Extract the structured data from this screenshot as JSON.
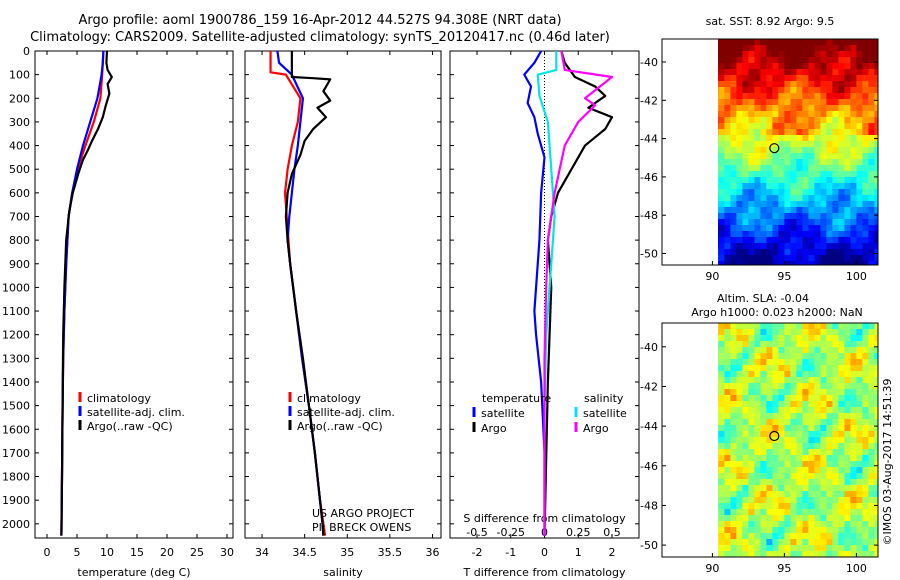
{
  "header": {
    "title_line1": "Argo profile: aoml 1900786_159 16-Apr-2012 44.527S 94.308E (NRT data)",
    "title_line2": "Climatology: CARS2009. Satellite-adjusted climatology: synTS_20120417.nc (0.46d later)"
  },
  "colors": {
    "climatology": "#ff0000",
    "satellite": "#0000ff",
    "argo": "#000000",
    "satellite_salinity": "#00e5e5",
    "argo_salinity": "#ff00ff"
  },
  "chart_data": [
    {
      "type": "line",
      "panel": "temperature",
      "xlabel": "temperature (deg C)",
      "ylabel": "",
      "xlim": [
        -2,
        31
      ],
      "ylim": [
        2060,
        0
      ],
      "xticks": [
        0,
        5,
        10,
        15,
        20,
        25,
        30
      ],
      "yticks": [
        0,
        100,
        200,
        300,
        400,
        500,
        600,
        700,
        800,
        900,
        1000,
        1100,
        1200,
        1300,
        1400,
        1500,
        1600,
        1700,
        1800,
        1900,
        2000
      ],
      "legend": [
        "climatology",
        "satellite-adj. clim.",
        "Argo(..raw -QC)"
      ],
      "legend_position": "lower-left",
      "series": [
        {
          "name": "climatology",
          "color": "#ff0000",
          "x": [
            9.4,
            9.3,
            9.2,
            8.9,
            7.8,
            6.4,
            5.1,
            4.2,
            3.6,
            3.2,
            2.9,
            2.7,
            2.6,
            2.5,
            2.4
          ],
          "y": [
            0,
            50,
            100,
            200,
            300,
            400,
            500,
            600,
            700,
            900,
            1100,
            1300,
            1500,
            1800,
            2050
          ]
        },
        {
          "name": "satellite-adj. clim.",
          "color": "#0000ff",
          "x": [
            9.4,
            9.3,
            9.1,
            8.4,
            7.2,
            6.0,
            5.0,
            4.2,
            3.6,
            3.2,
            2.9,
            2.7,
            2.6,
            2.5,
            2.4
          ],
          "y": [
            0,
            50,
            100,
            200,
            300,
            400,
            500,
            600,
            700,
            900,
            1100,
            1300,
            1500,
            1800,
            2050
          ]
        },
        {
          "name": "Argo(..raw -QC)",
          "color": "#000000",
          "x": [
            10.0,
            9.9,
            10.1,
            10.8,
            10.1,
            10.4,
            9.8,
            9.3,
            8.5,
            7.5,
            6.8,
            6.0,
            5.2,
            4.3,
            3.7,
            3.2,
            2.9,
            2.7,
            2.6,
            2.5,
            2.4
          ],
          "y": [
            0,
            50,
            80,
            110,
            140,
            180,
            230,
            280,
            330,
            380,
            420,
            460,
            520,
            600,
            680,
            800,
            1000,
            1200,
            1500,
            1800,
            2050
          ]
        }
      ]
    },
    {
      "type": "line",
      "panel": "salinity",
      "xlabel": "salinity",
      "ylabel": "",
      "xlim": [
        33.8,
        36.1
      ],
      "ylim": [
        2060,
        0
      ],
      "xticks": [
        34,
        34.5,
        35,
        35.5,
        36
      ],
      "legend": [
        "climatology",
        "satellite-adj. clim.",
        "Argo(..raw -QC)"
      ],
      "legend_position": "lower-left",
      "annotations": [
        "US ARGO PROJECT",
        "PI: BRECK OWENS"
      ],
      "series": [
        {
          "name": "climatology",
          "color": "#ff0000",
          "x": [
            34.1,
            34.1,
            34.28,
            34.45,
            34.42,
            34.35,
            34.3,
            34.27,
            34.29,
            34.33,
            34.4,
            34.47,
            34.55,
            34.62,
            34.68,
            34.72,
            34.74
          ],
          "y": [
            0,
            90,
            100,
            200,
            300,
            400,
            500,
            600,
            700,
            900,
            1100,
            1300,
            1500,
            1700,
            1900,
            2000,
            2050
          ]
        },
        {
          "name": "satellite-adj. clim.",
          "color": "#0000ff",
          "x": [
            34.18,
            34.2,
            34.35,
            34.48,
            34.45,
            34.42,
            34.38,
            34.35,
            34.32,
            34.3,
            34.33,
            34.4,
            34.47,
            34.55,
            34.62,
            34.68,
            34.71,
            34.72
          ],
          "y": [
            0,
            50,
            100,
            200,
            300,
            400,
            500,
            600,
            700,
            800,
            900,
            1100,
            1300,
            1500,
            1700,
            1900,
            2000,
            2050
          ]
        },
        {
          "name": "Argo(..raw -QC)",
          "color": "#000000",
          "x": [
            34.35,
            34.35,
            34.6,
            34.8,
            34.72,
            34.8,
            34.65,
            34.75,
            34.6,
            34.5,
            34.45,
            34.35,
            34.3,
            34.28,
            34.3,
            34.33,
            34.4,
            34.48,
            34.55,
            34.62,
            34.68,
            34.71,
            34.72
          ],
          "y": [
            0,
            110,
            115,
            120,
            170,
            210,
            240,
            280,
            330,
            380,
            440,
            520,
            600,
            700,
            800,
            900,
            1100,
            1300,
            1500,
            1700,
            1900,
            2000,
            2050
          ]
        }
      ]
    },
    {
      "type": "line",
      "panel": "differences",
      "xlabel": "T difference from climatology",
      "xlabel_top": "S difference from climatology",
      "xlim": [
        -2.8,
        2.8
      ],
      "ylim": [
        2060,
        0
      ],
      "xticks": [
        -2,
        -1,
        0,
        1,
        2
      ],
      "xtick_labels_T": [
        "-2",
        "-1",
        "0",
        "1",
        "2"
      ],
      "xticks_S": [
        -0.5,
        -0.25,
        0,
        0.25,
        0.5
      ],
      "xtick_labels_S": [
        "-0.5",
        "-0.25",
        "0",
        "0.25",
        "0.5"
      ],
      "legend": [
        "temperature",
        "satellite",
        "Argo",
        "salinity",
        "satellite",
        "Argo"
      ],
      "legend_position": "lower",
      "series": [
        {
          "name": "satellite",
          "group": "temperature",
          "color": "#0000ff",
          "x": [
            -0.1,
            -0.3,
            -0.6,
            -0.4,
            -0.5,
            -0.3,
            -0.2,
            0.0,
            -0.1,
            -0.15,
            -0.2,
            -0.3,
            -0.25,
            -0.1,
            0.0,
            0.0
          ],
          "y": [
            0,
            50,
            100,
            150,
            220,
            280,
            350,
            450,
            600,
            800,
            900,
            1100,
            1200,
            1400,
            1700,
            2050
          ]
        },
        {
          "name": "Argo",
          "group": "temperature",
          "color": "#000000",
          "x": [
            0.5,
            0.6,
            0.9,
            1.5,
            1.8,
            1.3,
            2.0,
            1.8,
            1.2,
            0.8,
            0.4,
            0.2,
            0.1,
            0.2,
            0.1,
            0.0
          ],
          "y": [
            0,
            50,
            110,
            150,
            190,
            240,
            280,
            330,
            400,
            500,
            600,
            700,
            800,
            1000,
            1400,
            2050
          ]
        },
        {
          "name": "satellite",
          "group": "salinity",
          "color": "#00e5e5",
          "x": [
            0.35,
            0.35,
            -0.2,
            -0.15,
            0.1,
            0.15,
            0.2,
            0.3,
            0.2,
            0.05,
            0.0,
            0.0
          ],
          "y": [
            0,
            80,
            100,
            190,
            300,
            400,
            500,
            700,
            900,
            1200,
            1500,
            2050
          ]
        },
        {
          "name": "Argo",
          "group": "salinity",
          "color": "#ff00ff",
          "x": [
            0.5,
            0.6,
            2.0,
            1.2,
            1.5,
            1.0,
            0.6,
            0.3,
            0.1,
            0.05,
            0.0,
            0.0
          ],
          "y": [
            0,
            80,
            110,
            200,
            230,
            300,
            400,
            600,
            800,
            1000,
            1300,
            2050
          ]
        }
      ]
    },
    {
      "type": "heatmap",
      "panel": "sst-map",
      "title": "sat. SST: 8.92 Argo: 9.5",
      "xticks": [
        90,
        95,
        100
      ],
      "yticks": [
        -40,
        -42,
        -44,
        -46,
        -48,
        -50
      ],
      "xlim": [
        86.5,
        101.5
      ],
      "ylim": [
        -50.6,
        -38.8
      ],
      "data_xlim": [
        90,
        101.5
      ],
      "marker": [
        94.3,
        -44.5
      ]
    },
    {
      "type": "heatmap",
      "panel": "sla-map",
      "title": "Altim. SLA: -0.04",
      "subtitle": "Argo h1000: 0.023 h2000: NaN",
      "xticks": [
        90,
        95,
        100
      ],
      "yticks": [
        -40,
        -42,
        -44,
        -46,
        -48,
        -50
      ],
      "xlim": [
        86.5,
        101.5
      ],
      "ylim": [
        -50.6,
        -38.8
      ],
      "data_xlim": [
        90,
        101.5
      ],
      "marker": [
        94.3,
        -44.5
      ]
    }
  ],
  "footer": {
    "stamp": "©IMOS 03-Aug-2017 14:51:39"
  }
}
